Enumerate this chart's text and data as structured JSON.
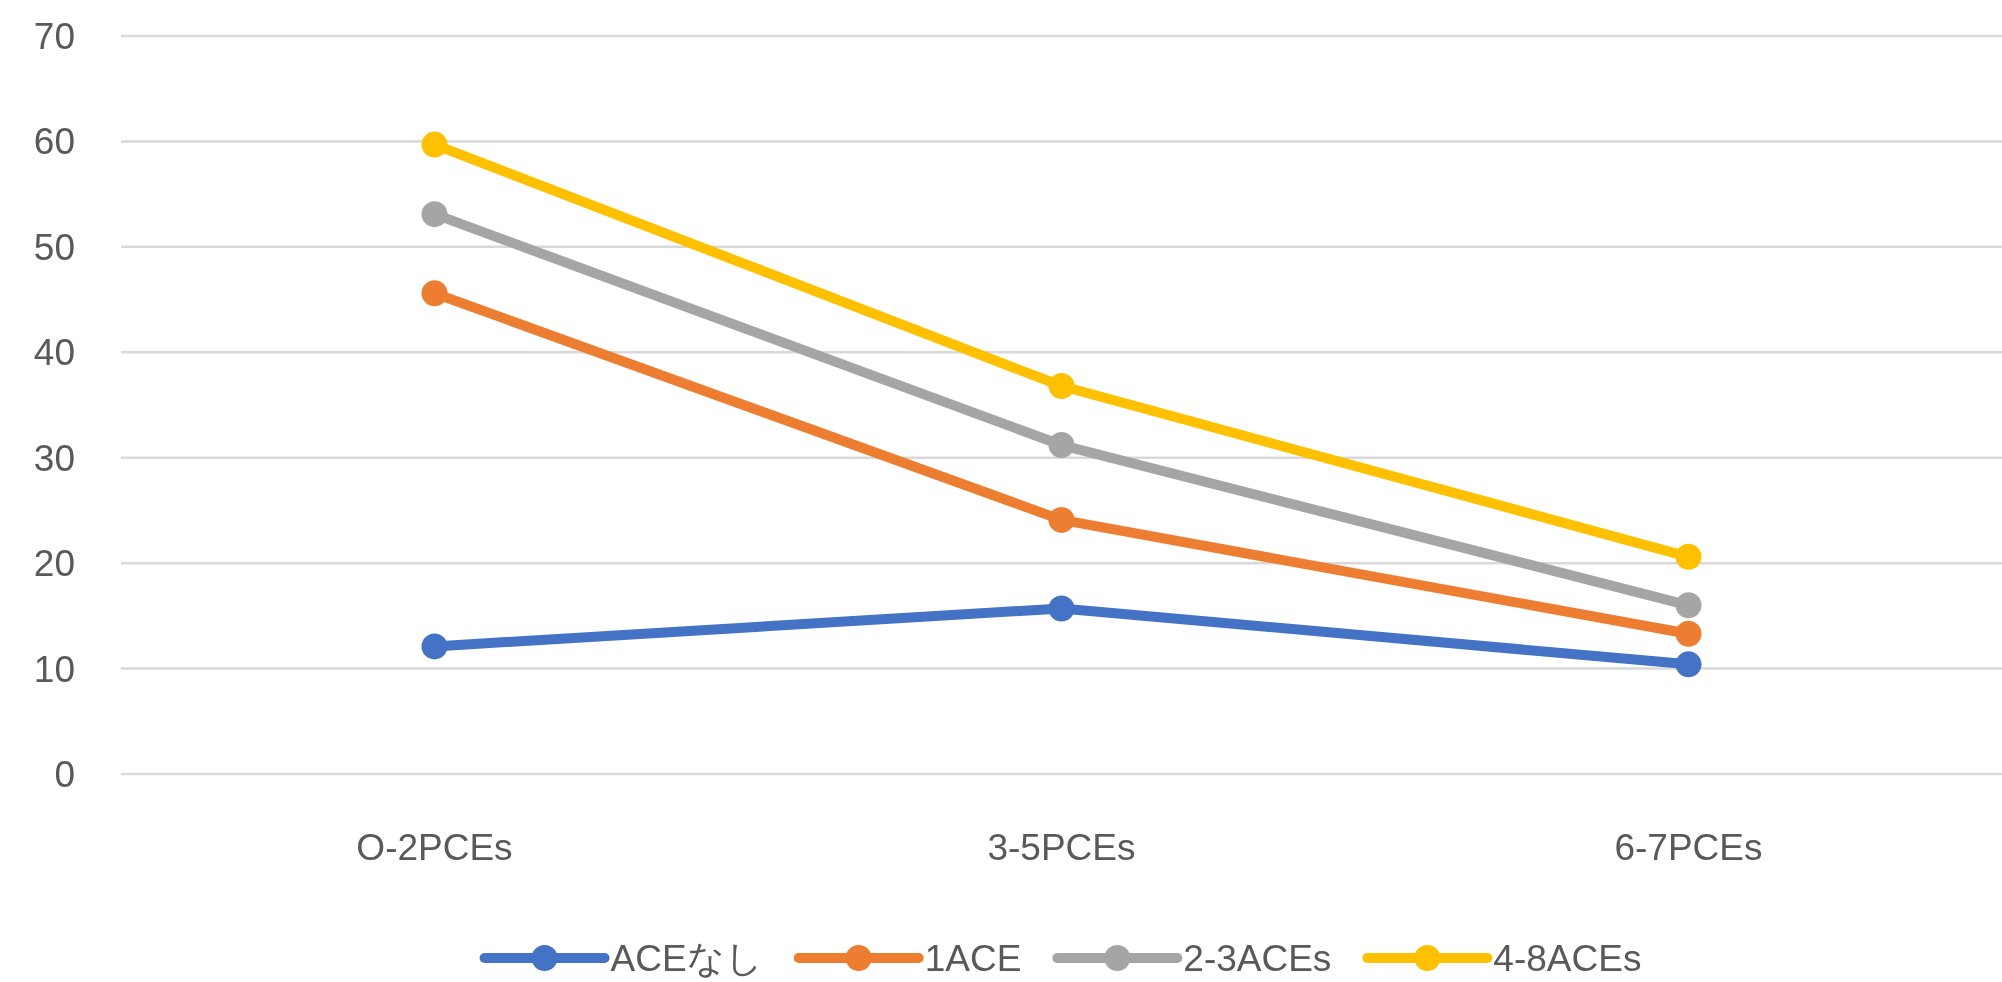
{
  "chart_data": {
    "type": "line",
    "categories": [
      "O-2PCEs",
      "3-5PCEs",
      "6-7PCEs"
    ],
    "series": [
      {
        "name": "ACEなし",
        "color": "#4472c4",
        "values": [
          12.1,
          15.7,
          10.4
        ]
      },
      {
        "name": "1ACE",
        "color": "#ed7d31",
        "values": [
          45.6,
          24.1,
          13.3
        ]
      },
      {
        "name": "2-3ACEs",
        "color": "#a5a5a5",
        "values": [
          53.1,
          31.2,
          16.0
        ]
      },
      {
        "name": "4-8ACEs",
        "color": "#ffc000",
        "values": [
          59.7,
          36.8,
          20.6
        ]
      }
    ],
    "ylim": [
      0,
      70
    ],
    "yticks": [
      0,
      10,
      20,
      30,
      40,
      50,
      60,
      70
    ],
    "grid": "y",
    "legend": "bottom",
    "marker": "circle",
    "line_style": "solid"
  }
}
